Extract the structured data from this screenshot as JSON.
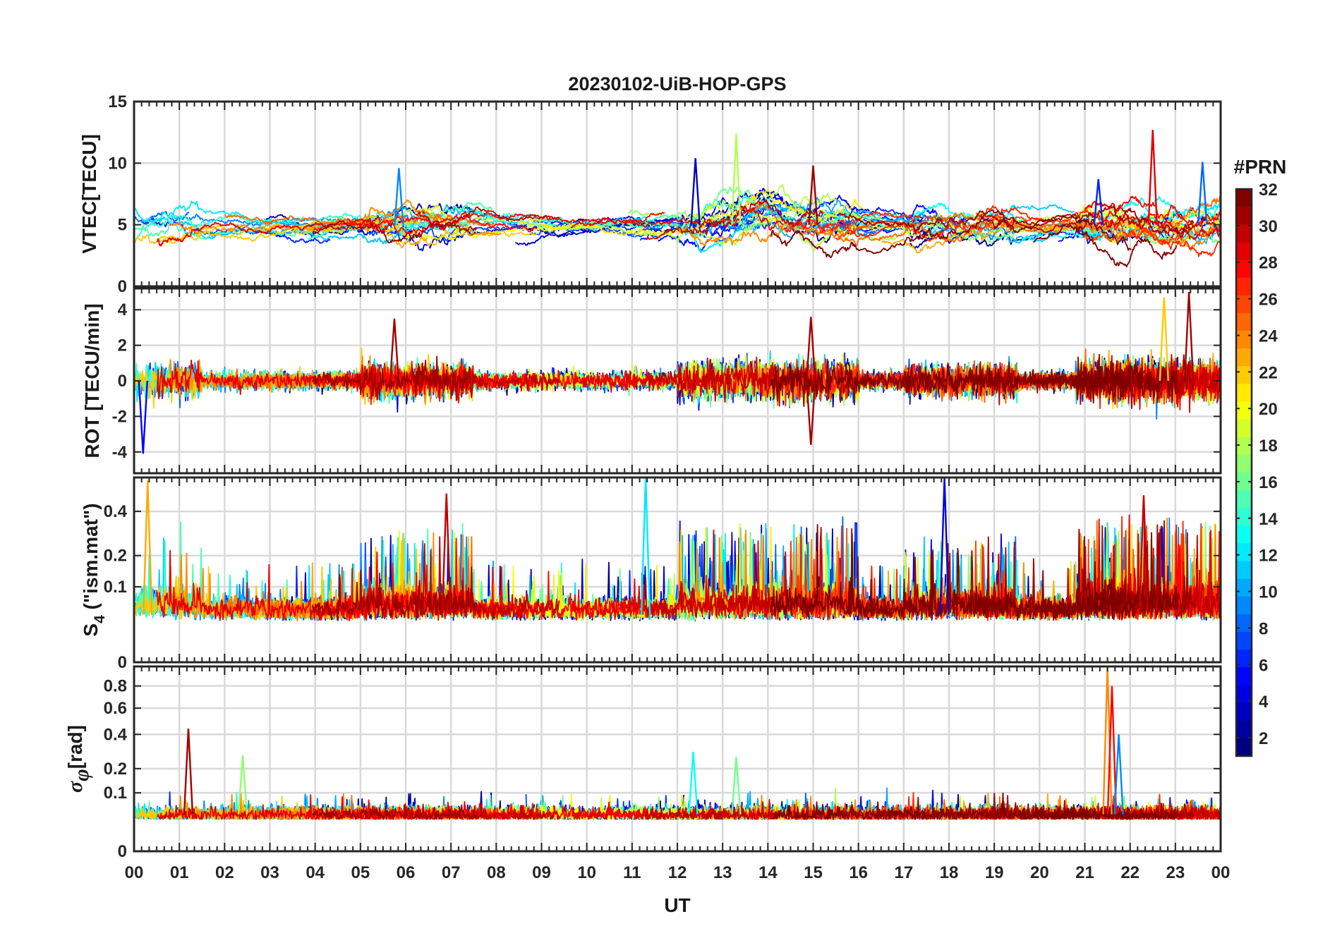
{
  "chart_data": {
    "title": "20230102-UiB-HOP-GPS",
    "xlabel": "UT",
    "x_ticks": [
      "00",
      "01",
      "02",
      "03",
      "04",
      "05",
      "06",
      "07",
      "08",
      "09",
      "10",
      "11",
      "12",
      "13",
      "14",
      "15",
      "16",
      "17",
      "18",
      "19",
      "20",
      "21",
      "22",
      "23",
      "00"
    ],
    "xlim_hours": [
      0,
      24
    ],
    "grid": true,
    "colorbar": {
      "label": "#PRN",
      "colormap": "jet",
      "range": [
        1,
        32
      ],
      "ticks": [
        "2",
        "4",
        "6",
        "8",
        "10",
        "12",
        "14",
        "16",
        "18",
        "20",
        "22",
        "24",
        "26",
        "28",
        "30",
        "32"
      ],
      "placement": "right"
    },
    "panels": [
      {
        "id": "vtec",
        "type": "line",
        "ylabel": "VTEC[TECU]",
        "ylim": [
          0,
          15
        ],
        "y_ticks": [
          "0",
          "5",
          "10",
          "15"
        ],
        "y_tick_values": [
          0,
          5,
          10,
          15
        ],
        "typical_range": [
          2,
          8
        ],
        "peak_events": [
          {
            "t": 5.85,
            "v": 9.6,
            "prn": 9
          },
          {
            "t": 12.4,
            "v": 10.4,
            "prn": 3
          },
          {
            "t": 13.3,
            "v": 12.4,
            "prn": 18
          },
          {
            "t": 15.0,
            "v": 9.8,
            "prn": 31
          },
          {
            "t": 21.3,
            "v": 8.7,
            "prn": 6
          },
          {
            "t": 22.5,
            "v": 12.7,
            "prn": 29
          },
          {
            "t": 23.6,
            "v": 10.1,
            "prn": 8
          }
        ]
      },
      {
        "id": "rot",
        "type": "line",
        "ylabel": "ROT [TECU/min]",
        "ylim": [
          -5.2,
          5.2
        ],
        "y_ticks": [
          "-4",
          "-2",
          "0",
          "2",
          "4"
        ],
        "y_tick_values": [
          -4,
          -2,
          0,
          2,
          4
        ],
        "peak_events": [
          {
            "t": 0.2,
            "v": -4.1,
            "prn": 5
          },
          {
            "t": 5.75,
            "v": 3.5,
            "prn": 31
          },
          {
            "t": 14.95,
            "v": 3.6,
            "prn": 31
          },
          {
            "t": 14.95,
            "v": -3.6,
            "prn": 31
          },
          {
            "t": 22.75,
            "v": 4.7,
            "prn": 22
          },
          {
            "t": 23.3,
            "v": 5.0,
            "prn": 31
          }
        ]
      },
      {
        "id": "s4",
        "type": "line",
        "ylabel": "S4 (\"ism.mat\")",
        "ylabel_main": "S",
        "ylabel_sub": "4",
        "ylabel_rest": " (\"ism.mat\")",
        "scale": "sqrt",
        "ylim": [
          0,
          0.6
        ],
        "y_ticks": [
          "0",
          "0.1",
          "0.2",
          "0.4"
        ],
        "y_tick_values": [
          0,
          0.1,
          0.2,
          0.4
        ],
        "peak_events": [
          {
            "t": 0.3,
            "v": 0.58,
            "prn": 23
          },
          {
            "t": 6.9,
            "v": 0.5,
            "prn": 30
          },
          {
            "t": 11.3,
            "v": 0.6,
            "prn": 12
          },
          {
            "t": 17.9,
            "v": 0.6,
            "prn": 4
          },
          {
            "t": 22.3,
            "v": 0.49,
            "prn": 30
          }
        ]
      },
      {
        "id": "sigphi",
        "type": "line",
        "ylabel": "σφ[rad]",
        "ylabel_main": "σ",
        "ylabel_sub": "φ",
        "ylabel_rest": "[rad]",
        "scale": "sqrt",
        "ylim": [
          0,
          1.0
        ],
        "y_ticks": [
          "0",
          "0.1",
          "0.2",
          "0.4",
          "0.6",
          "0.8"
        ],
        "y_tick_values": [
          0,
          0.1,
          0.2,
          0.4,
          0.6,
          0.8
        ],
        "peak_events": [
          {
            "t": 1.2,
            "v": 0.44,
            "prn": 31
          },
          {
            "t": 2.4,
            "v": 0.27,
            "prn": 17
          },
          {
            "t": 12.35,
            "v": 0.29,
            "prn": 13
          },
          {
            "t": 13.3,
            "v": 0.26,
            "prn": 16
          },
          {
            "t": 21.5,
            "v": 1.0,
            "prn": 24
          },
          {
            "t": 21.6,
            "v": 0.8,
            "prn": 28
          },
          {
            "t": 21.75,
            "v": 0.4,
            "prn": 9
          }
        ]
      }
    ]
  }
}
